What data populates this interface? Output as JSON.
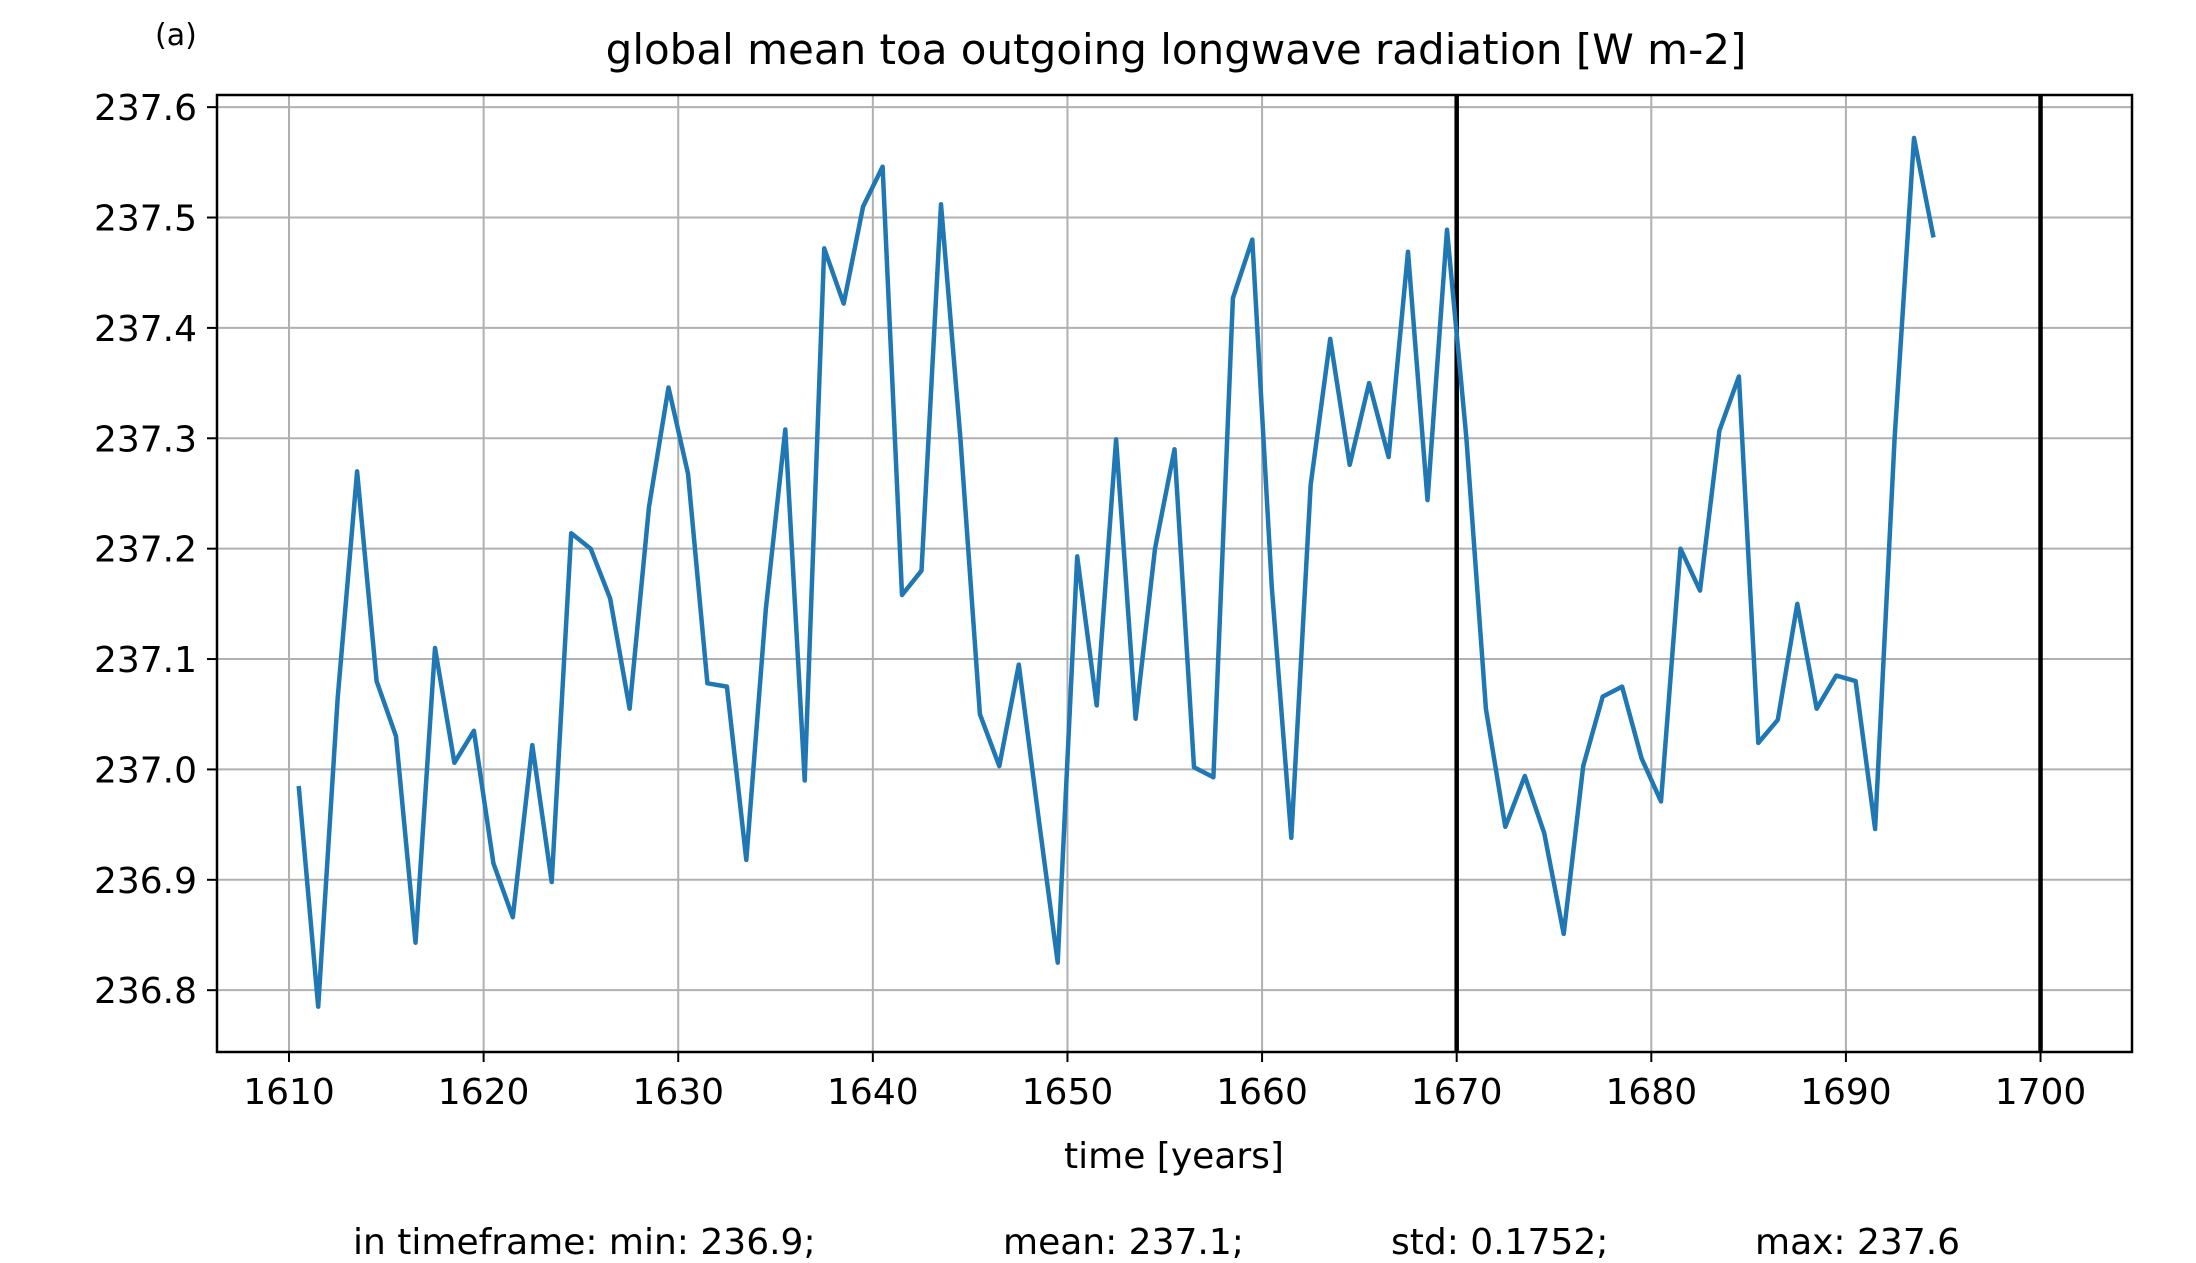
{
  "panel_label": "(a)",
  "chart_data": {
    "type": "line",
    "title": "global mean toa outgoing longwave radiation [W m-2]",
    "xlabel": "time [years]",
    "ylabel": "",
    "xlim": [
      1606.3,
      1704.7
    ],
    "ylim": [
      236.744,
      237.611
    ],
    "xticks": [
      1610,
      1620,
      1630,
      1640,
      1650,
      1660,
      1670,
      1680,
      1690,
      1700
    ],
    "yticks": [
      236.8,
      236.9,
      237.0,
      237.1,
      237.2,
      237.3,
      237.4,
      237.5,
      237.6
    ],
    "xtick_labels": [
      "1610",
      "1620",
      "1630",
      "1640",
      "1650",
      "1660",
      "1670",
      "1680",
      "1690",
      "1700"
    ],
    "ytick_labels": [
      "236.8",
      "236.9",
      "237.0",
      "237.1",
      "237.2",
      "237.3",
      "237.4",
      "237.5",
      "237.6"
    ],
    "grid": true,
    "vlines": [
      1670,
      1700
    ],
    "series_color": "#1f77b4",
    "series": [
      {
        "x": [
          1610.5,
          1611.5,
          1612.5,
          1613.5,
          1614.5,
          1615.5,
          1616.5,
          1617.5,
          1618.5,
          1619.5,
          1620.5,
          1621.5,
          1622.5,
          1623.5,
          1624.5,
          1625.5,
          1626.5,
          1627.5,
          1628.5,
          1629.5,
          1630.5,
          1631.5,
          1632.5,
          1633.5,
          1634.5,
          1635.5,
          1636.5,
          1637.5,
          1638.5,
          1639.5,
          1640.5,
          1641.5,
          1642.5,
          1643.5,
          1644.5,
          1645.5,
          1646.5,
          1647.5,
          1648.5,
          1649.5,
          1650.5,
          1651.5,
          1652.5,
          1653.5,
          1654.5,
          1655.5,
          1656.5,
          1657.5,
          1658.5,
          1659.5,
          1660.5,
          1661.5,
          1662.5,
          1663.5,
          1664.5,
          1665.5,
          1666.5,
          1667.5,
          1668.5,
          1669.5,
          1670.5,
          1671.5,
          1672.5,
          1673.5,
          1674.5,
          1675.5,
          1676.5,
          1677.5,
          1678.5,
          1679.5,
          1680.5,
          1681.5,
          1682.5,
          1683.5,
          1684.5,
          1685.5,
          1686.5,
          1687.5,
          1688.5,
          1689.5,
          1690.5,
          1691.5,
          1692.5,
          1693.5,
          1694.5
        ],
        "values": [
          236.985,
          236.785,
          237.065,
          237.27,
          237.08,
          237.03,
          236.843,
          237.11,
          237.006,
          237.035,
          236.915,
          236.866,
          237.022,
          236.898,
          237.214,
          237.2,
          237.155,
          237.055,
          237.238,
          237.346,
          237.268,
          237.078,
          237.075,
          236.918,
          237.145,
          237.308,
          236.99,
          237.472,
          237.422,
          237.51,
          237.546,
          237.158,
          237.18,
          237.512,
          237.3,
          237.05,
          237.003,
          237.095,
          236.958,
          236.825,
          237.193,
          237.058,
          237.299,
          237.046,
          237.2,
          237.29,
          237.002,
          236.993,
          237.427,
          237.48,
          237.165,
          236.938,
          237.258,
          237.39,
          237.276,
          237.35,
          237.283,
          237.469,
          237.244,
          237.489,
          237.3,
          237.055,
          236.948,
          236.994,
          236.942,
          236.851,
          237.003,
          237.066,
          237.075,
          237.01,
          236.971,
          237.2,
          237.162,
          237.307,
          237.356,
          237.024,
          237.045,
          237.15,
          237.055,
          237.085,
          237.08,
          236.946,
          237.3,
          237.572,
          237.482
        ]
      }
    ]
  },
  "stats": {
    "min": "in timeframe: min: 236.9;",
    "mean": "mean: 237.1;",
    "std": "std: 0.1752;",
    "max": "max: 237.6"
  }
}
